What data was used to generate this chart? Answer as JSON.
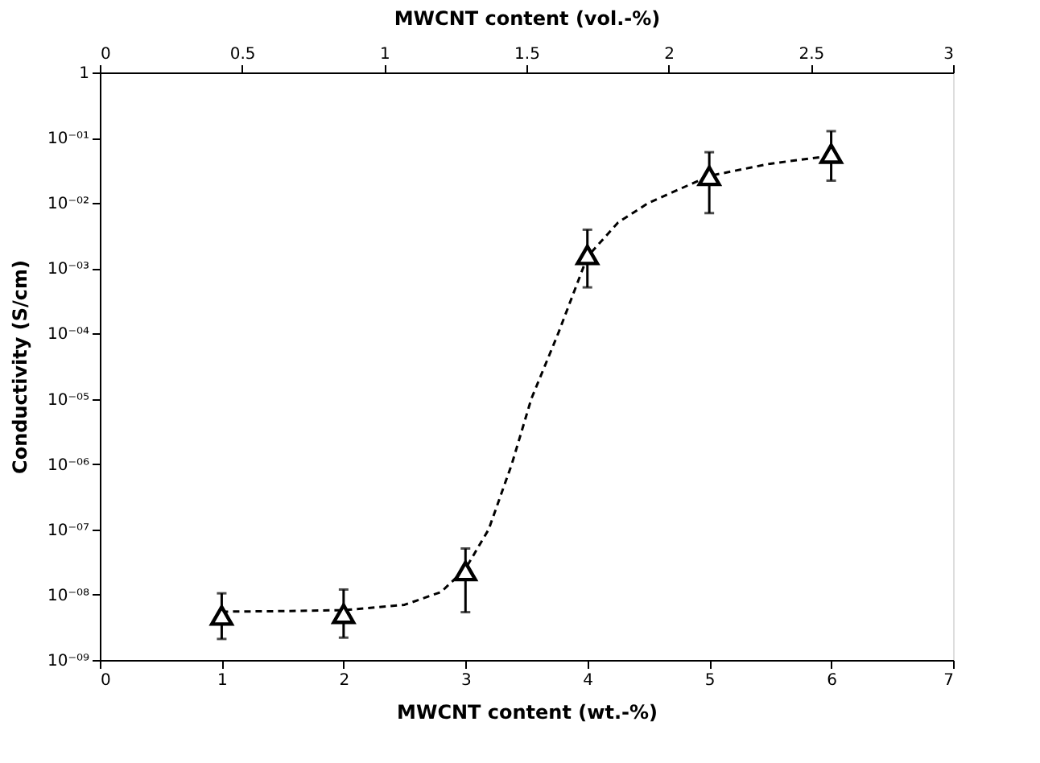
{
  "chart_data": {
    "type": "scatter",
    "xlabel": "MWCNT content (wt.-%)",
    "x2label": "MWCNT content (vol.-%)",
    "ylabel": "Conductivity (S/cm)",
    "log": "y",
    "grid": false,
    "marker": "triangle",
    "xlim": [
      0,
      7
    ],
    "xticks": [
      0,
      1,
      2,
      3,
      4,
      5,
      6,
      7
    ],
    "x2lim": [
      0,
      3
    ],
    "x2ticks": [
      0,
      0.5,
      1,
      1.5,
      2,
      2.5,
      3
    ],
    "ylim": [
      1e-09,
      1
    ],
    "yticks": [
      {
        "value": 1e-09,
        "label": "10⁻⁰⁹"
      },
      {
        "value": 1e-08,
        "label": "10⁻⁰⁸"
      },
      {
        "value": 1e-07,
        "label": "10⁻⁰⁷"
      },
      {
        "value": 1e-06,
        "label": "10⁻⁰⁶"
      },
      {
        "value": 1e-05,
        "label": "10⁻⁰⁵"
      },
      {
        "value": 0.0001,
        "label": "10⁻⁰⁴"
      },
      {
        "value": 0.001,
        "label": "10⁻⁰³"
      },
      {
        "value": 0.01,
        "label": "10⁻⁰²"
      },
      {
        "value": 0.1,
        "label": "10⁻⁰¹"
      },
      1
    ],
    "series": [
      {
        "type": "line",
        "line_style": "dashed",
        "marker": "none",
        "color": "#000000",
        "x": [
          1,
          1.5,
          2,
          2.5,
          2.8,
          3,
          3.19,
          3.38,
          3.54,
          3.76,
          4,
          4.25,
          4.5,
          5,
          5.5,
          6
        ],
        "values": [
          5.5e-09,
          5.6e-09,
          5.8e-09,
          7e-09,
          1.1e-08,
          2.5e-08,
          1e-07,
          1e-06,
          1e-05,
          0.0001,
          0.0015,
          0.005,
          0.01,
          0.026,
          0.04,
          0.053
        ]
      },
      {
        "color": "#000000",
        "x": [
          1,
          2,
          3,
          4,
          5,
          6
        ],
        "values": [
          4.8e-09,
          5.1e-09,
          2.3e-08,
          0.0016,
          0.026,
          0.057
        ],
        "errors": [
          [
            2.1e-09,
            1.05e-08
          ],
          [
            2.2e-09,
            1.2e-08
          ],
          [
            5.4e-09,
            5.1e-08
          ],
          [
            0.00051,
            0.0039
          ],
          [
            0.007,
            0.06
          ],
          [
            0.022,
            0.126
          ]
        ]
      }
    ]
  }
}
